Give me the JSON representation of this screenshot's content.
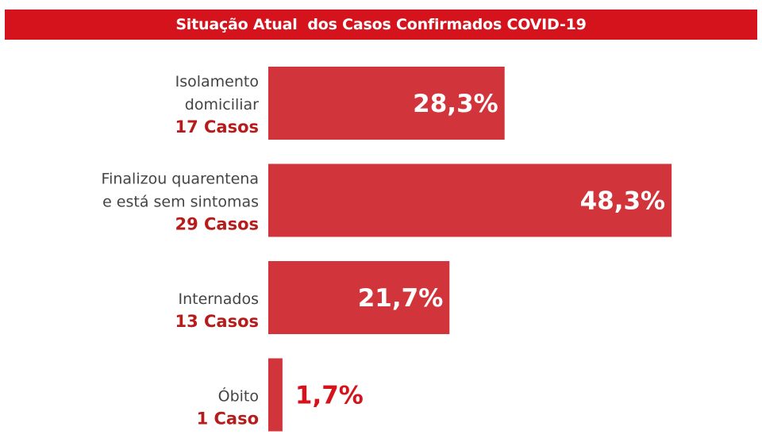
{
  "colors": {
    "accent": "#d5131c",
    "bar": "#d2343b",
    "count_text": "#b71c1c",
    "label_text": "#444444"
  },
  "chart_data": {
    "type": "bar",
    "orientation": "horizontal",
    "title": "Situação Atual  dos Casos Confirmados COVID-19",
    "categories": [
      [
        "Isolamento",
        "domiciliar"
      ],
      [
        "Finalizou quarentena",
        "e está sem sintomas"
      ],
      [
        "Internados"
      ],
      [
        "Óbito"
      ]
    ],
    "counts": [
      "17 Casos",
      "29 Casos",
      "13 Casos",
      "1 Caso"
    ],
    "values": [
      28.3,
      48.3,
      21.7,
      1.7
    ],
    "value_labels": [
      "28,3%",
      "48,3%",
      "21,7%",
      "1,7%"
    ],
    "unit": "%",
    "grid": false,
    "legend": "none"
  }
}
